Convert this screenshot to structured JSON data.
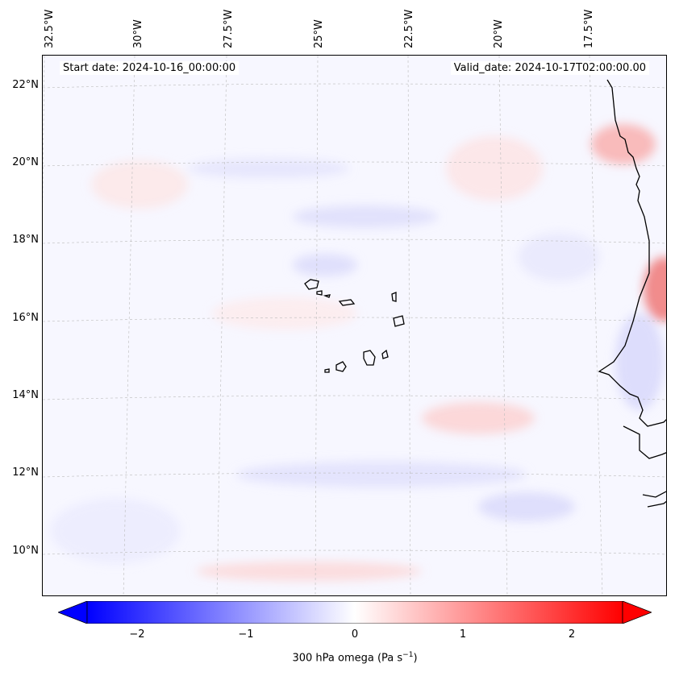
{
  "map": {
    "start_date": "Start date: 2024-10-16_00:00:00",
    "valid_date": "Valid_date: 2024-10-17T02:00:00.00",
    "longitude_labels": [
      "32.5°W",
      "30°W",
      "27.5°W",
      "25°W",
      "22.5°W",
      "20°W",
      "17.5°W"
    ],
    "latitude_labels": [
      "22°N",
      "20°N",
      "18°N",
      "16°N",
      "14°N",
      "12°N",
      "10°N"
    ],
    "gridlines": true
  },
  "colorbar": {
    "ticks": [
      "−2",
      "−1",
      "0",
      "1",
      "2"
    ],
    "label": "300 hPa omega (Pa s",
    "label_sup": "−1",
    "label_end": ")",
    "cmap_low": "#0000ff",
    "cmap_mid": "#ffffff",
    "cmap_high": "#ff0000"
  }
}
